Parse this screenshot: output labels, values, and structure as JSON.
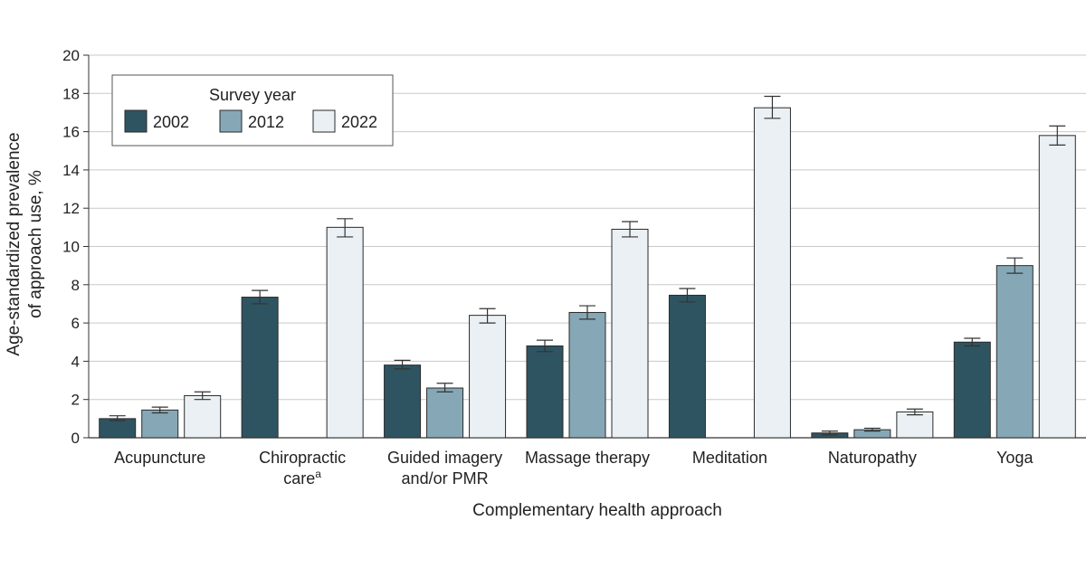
{
  "chart_data": {
    "type": "bar",
    "title": "",
    "xlabel": "Complementary health approach",
    "ylabel_lines": [
      "Age-standardized prevalence",
      "of approach use, %"
    ],
    "ylim": [
      0,
      20
    ],
    "yticks": [
      0,
      2,
      4,
      6,
      8,
      10,
      12,
      14,
      16,
      18,
      20
    ],
    "grid": true,
    "legend": {
      "title": "Survey year",
      "position": "top-left",
      "entries": [
        "2002",
        "2012",
        "2022"
      ]
    },
    "categories": [
      {
        "lines": [
          "Acupuncture"
        ]
      },
      {
        "lines": [
          "Chiropractic",
          "care"
        ],
        "superscript": "a"
      },
      {
        "lines": [
          "Guided imagery",
          "and/or PMR"
        ]
      },
      {
        "lines": [
          "Massage therapy"
        ]
      },
      {
        "lines": [
          "Meditation"
        ]
      },
      {
        "lines": [
          "Naturopathy"
        ]
      },
      {
        "lines": [
          "Yoga"
        ]
      }
    ],
    "series": [
      {
        "name": "2002",
        "color": "#2f5461",
        "values": [
          1.0,
          7.35,
          3.8,
          4.8,
          7.45,
          0.25,
          5.0
        ],
        "err_low": [
          0.9,
          7.0,
          3.6,
          4.5,
          7.1,
          0.15,
          4.8
        ],
        "err_high": [
          1.15,
          7.7,
          4.05,
          5.1,
          7.8,
          0.35,
          5.2
        ]
      },
      {
        "name": "2012",
        "color": "#86a8b6",
        "values": [
          1.45,
          null,
          2.6,
          6.55,
          null,
          0.42,
          9.0
        ],
        "err_low": [
          1.3,
          null,
          2.4,
          6.2,
          null,
          0.35,
          8.6
        ],
        "err_high": [
          1.6,
          null,
          2.85,
          6.9,
          null,
          0.5,
          9.4
        ]
      },
      {
        "name": "2022",
        "color": "#eaf0f3",
        "values": [
          2.2,
          11.0,
          6.4,
          10.9,
          17.25,
          1.35,
          15.8
        ],
        "err_low": [
          2.0,
          10.5,
          6.0,
          10.5,
          16.7,
          1.2,
          15.3
        ],
        "err_high": [
          2.4,
          11.45,
          6.75,
          11.3,
          17.85,
          1.5,
          16.3
        ]
      }
    ]
  }
}
